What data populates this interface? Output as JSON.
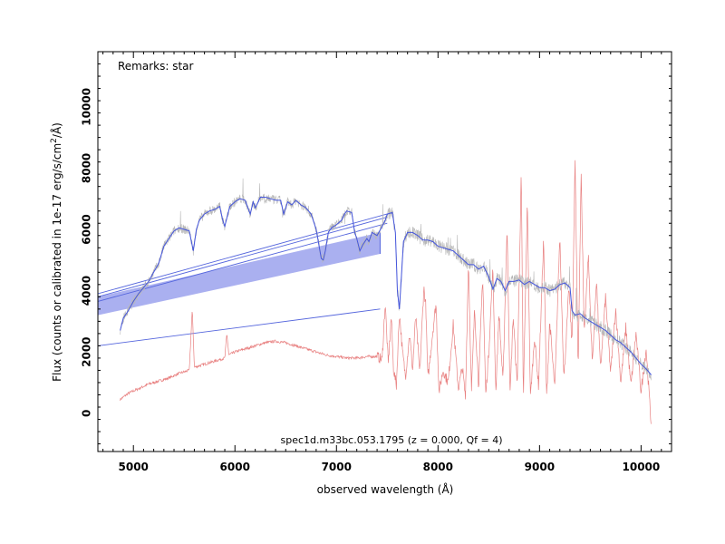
{
  "chart_data": {
    "type": "line",
    "xlabel": "observed wavelength (Å)",
    "ylabel_main": "Flux (counts or calibrated in 1e-17 erg/s/cm",
    "ylabel_sup": "2",
    "ylabel_end": "/Å)",
    "remarks": "Remarks: star",
    "caption": "spec1d.m33bc.053.1795 (z = 0.000, Qf = 4)",
    "xlim": [
      4650,
      10300
    ],
    "ylim": [
      -1250,
      11800
    ],
    "x_ticks": [
      5000,
      6000,
      7000,
      8000,
      9000,
      10000
    ],
    "x_tick_labels": [
      "5000",
      "6000",
      "7000",
      "8000",
      "9000",
      "10000"
    ],
    "y_ticks": [
      0,
      2000,
      4000,
      6000,
      8000,
      10000
    ],
    "y_tick_labels": [
      "0",
      "2000",
      "4000",
      "6000",
      "8000",
      "10000"
    ],
    "grid": false,
    "colors": {
      "smoothed_flux": "#4455dd",
      "raw_flux": "#b8b8b8",
      "error": "#e88080",
      "band_fill": "#aab0f0",
      "band_line": "#5566dd"
    },
    "series": [
      {
        "role": "smoothed_flux",
        "points": [
          [
            4870,
            2700
          ],
          [
            4900,
            3100
          ],
          [
            4950,
            3350
          ],
          [
            5000,
            3650
          ],
          [
            5050,
            3900
          ],
          [
            5100,
            4100
          ],
          [
            5150,
            4300
          ],
          [
            5200,
            4600
          ],
          [
            5250,
            4900
          ],
          [
            5300,
            5450
          ],
          [
            5350,
            5700
          ],
          [
            5400,
            5950
          ],
          [
            5450,
            6050
          ],
          [
            5500,
            6000
          ],
          [
            5550,
            5950
          ],
          [
            5590,
            5300
          ],
          [
            5620,
            6000
          ],
          [
            5650,
            6300
          ],
          [
            5700,
            6500
          ],
          [
            5750,
            6600
          ],
          [
            5800,
            6650
          ],
          [
            5850,
            6750
          ],
          [
            5880,
            6300
          ],
          [
            5900,
            6100
          ],
          [
            5930,
            6500
          ],
          [
            5950,
            6750
          ],
          [
            6000,
            6900
          ],
          [
            6050,
            7000
          ],
          [
            6100,
            6950
          ],
          [
            6150,
            6500
          ],
          [
            6180,
            6900
          ],
          [
            6200,
            6700
          ],
          [
            6250,
            7050
          ],
          [
            6300,
            7050
          ],
          [
            6350,
            7000
          ],
          [
            6400,
            6950
          ],
          [
            6450,
            6950
          ],
          [
            6480,
            6500
          ],
          [
            6520,
            6900
          ],
          [
            6560,
            6800
          ],
          [
            6600,
            6950
          ],
          [
            6650,
            6800
          ],
          [
            6700,
            6700
          ],
          [
            6750,
            6500
          ],
          [
            6800,
            6000
          ],
          [
            6850,
            5050
          ],
          [
            6870,
            5000
          ],
          [
            6890,
            5300
          ],
          [
            6920,
            5900
          ],
          [
            6950,
            6050
          ],
          [
            7000,
            6150
          ],
          [
            7050,
            6300
          ],
          [
            7080,
            6500
          ],
          [
            7100,
            6600
          ],
          [
            7150,
            6550
          ],
          [
            7180,
            5900
          ],
          [
            7200,
            5700
          ],
          [
            7230,
            5300
          ],
          [
            7260,
            5500
          ],
          [
            7300,
            5700
          ],
          [
            7320,
            5600
          ],
          [
            7350,
            5900
          ],
          [
            7400,
            5800
          ],
          [
            7450,
            6100
          ],
          [
            7480,
            6300
          ],
          [
            7500,
            6500
          ],
          [
            7550,
            6550
          ],
          [
            7580,
            5900
          ],
          [
            7600,
            4000
          ],
          [
            7620,
            3400
          ],
          [
            7640,
            4500
          ],
          [
            7660,
            5600
          ],
          [
            7700,
            5900
          ],
          [
            7750,
            5900
          ],
          [
            7800,
            5800
          ],
          [
            7850,
            5650
          ],
          [
            7900,
            5650
          ],
          [
            7950,
            5600
          ],
          [
            8000,
            5450
          ],
          [
            8050,
            5400
          ],
          [
            8100,
            5350
          ],
          [
            8150,
            5300
          ],
          [
            8200,
            5150
          ],
          [
            8250,
            5000
          ],
          [
            8300,
            4850
          ],
          [
            8350,
            4850
          ],
          [
            8400,
            4700
          ],
          [
            8450,
            4800
          ],
          [
            8500,
            4450
          ],
          [
            8542,
            4050
          ],
          [
            8580,
            4400
          ],
          [
            8620,
            4300
          ],
          [
            8662,
            4000
          ],
          [
            8700,
            4300
          ],
          [
            8750,
            4300
          ],
          [
            8800,
            4350
          ],
          [
            8850,
            4200
          ],
          [
            8900,
            4300
          ],
          [
            8950,
            4200
          ],
          [
            9000,
            4100
          ],
          [
            9050,
            4100
          ],
          [
            9100,
            4000
          ],
          [
            9150,
            4050
          ],
          [
            9200,
            4200
          ],
          [
            9250,
            4250
          ],
          [
            9300,
            4100
          ],
          [
            9320,
            3350
          ],
          [
            9350,
            3200
          ],
          [
            9400,
            3250
          ],
          [
            9450,
            3100
          ],
          [
            9500,
            3000
          ],
          [
            9550,
            2900
          ],
          [
            9600,
            2800
          ],
          [
            9650,
            2700
          ],
          [
            9700,
            2550
          ],
          [
            9750,
            2400
          ],
          [
            9800,
            2300
          ],
          [
            9850,
            2150
          ],
          [
            9900,
            2000
          ],
          [
            9950,
            1800
          ],
          [
            10000,
            1600
          ],
          [
            10050,
            1450
          ],
          [
            10100,
            1250
          ]
        ]
      },
      {
        "role": "error",
        "points": [
          [
            4870,
            450
          ],
          [
            4950,
            650
          ],
          [
            5050,
            800
          ],
          [
            5150,
            950
          ],
          [
            5250,
            1050
          ],
          [
            5350,
            1150
          ],
          [
            5450,
            1300
          ],
          [
            5550,
            1400
          ],
          [
            5580,
            3400
          ],
          [
            5600,
            1500
          ],
          [
            5700,
            1600
          ],
          [
            5800,
            1700
          ],
          [
            5900,
            1800
          ],
          [
            5920,
            2600
          ],
          [
            5940,
            1900
          ],
          [
            6000,
            2000
          ],
          [
            6100,
            2100
          ],
          [
            6200,
            2200
          ],
          [
            6300,
            2300
          ],
          [
            6400,
            2350
          ],
          [
            6500,
            2300
          ],
          [
            6600,
            2200
          ],
          [
            6700,
            2100
          ],
          [
            6800,
            2000
          ],
          [
            6900,
            1900
          ],
          [
            7000,
            1850
          ],
          [
            7100,
            1800
          ],
          [
            7200,
            1800
          ],
          [
            7300,
            1850
          ],
          [
            7400,
            1850
          ],
          [
            7450,
            1750
          ],
          [
            7480,
            3600
          ],
          [
            7510,
            1600
          ],
          [
            7540,
            3200
          ],
          [
            7560,
            1500
          ],
          [
            7590,
            900
          ],
          [
            7620,
            3300
          ],
          [
            7650,
            2000
          ],
          [
            7680,
            1200
          ],
          [
            7720,
            2600
          ],
          [
            7750,
            1400
          ],
          [
            7780,
            3200
          ],
          [
            7820,
            1300
          ],
          [
            7860,
            4100
          ],
          [
            7880,
            3500
          ],
          [
            7900,
            1100
          ],
          [
            7940,
            2400
          ],
          [
            7980,
            3600
          ],
          [
            8010,
            700
          ],
          [
            8050,
            1400
          ],
          [
            8100,
            1000
          ],
          [
            8150,
            2900
          ],
          [
            8200,
            800
          ],
          [
            8240,
            1500
          ],
          [
            8270,
            500
          ],
          [
            8300,
            5000
          ],
          [
            8330,
            700
          ],
          [
            8360,
            3400
          ],
          [
            8400,
            900
          ],
          [
            8440,
            4500
          ],
          [
            8470,
            600
          ],
          [
            8500,
            2000
          ],
          [
            8540,
            4700
          ],
          [
            8570,
            700
          ],
          [
            8600,
            3300
          ],
          [
            8640,
            1000
          ],
          [
            8680,
            6100
          ],
          [
            8710,
            600
          ],
          [
            8740,
            3200
          ],
          [
            8780,
            900
          ],
          [
            8820,
            7900
          ],
          [
            8840,
            400
          ],
          [
            8880,
            6900
          ],
          [
            8910,
            500
          ],
          [
            8950,
            2500
          ],
          [
            8990,
            900
          ],
          [
            9040,
            5700
          ],
          [
            9070,
            500
          ],
          [
            9100,
            3000
          ],
          [
            9150,
            800
          ],
          [
            9200,
            5800
          ],
          [
            9240,
            1100
          ],
          [
            9290,
            4100
          ],
          [
            9320,
            2200
          ],
          [
            9350,
            8300
          ],
          [
            9380,
            1400
          ],
          [
            9410,
            7800
          ],
          [
            9440,
            2600
          ],
          [
            9480,
            5200
          ],
          [
            9520,
            1600
          ],
          [
            9560,
            4400
          ],
          [
            9600,
            1400
          ],
          [
            9650,
            3800
          ],
          [
            9700,
            1300
          ],
          [
            9750,
            3400
          ],
          [
            9800,
            1000
          ],
          [
            9850,
            2800
          ],
          [
            9900,
            900
          ],
          [
            9950,
            2600
          ],
          [
            10000,
            700
          ],
          [
            10050,
            2100
          ],
          [
            10100,
            -400
          ]
        ]
      }
    ],
    "overlay_lines": [
      {
        "x": [
          4650,
          7550
        ],
        "y": [
          3900,
          6550
        ]
      },
      {
        "x": [
          4650,
          7500
        ],
        "y": [
          3800,
          6400
        ]
      },
      {
        "x": [
          4650,
          7500
        ],
        "y": [
          3650,
          6200
        ]
      },
      {
        "x": [
          4650,
          7430
        ],
        "y": [
          2200,
          3400
        ]
      }
    ],
    "band": {
      "x": [
        4650,
        7430
      ],
      "upper": [
        3800,
        5900
      ],
      "lower": [
        3200,
        5200
      ]
    }
  }
}
